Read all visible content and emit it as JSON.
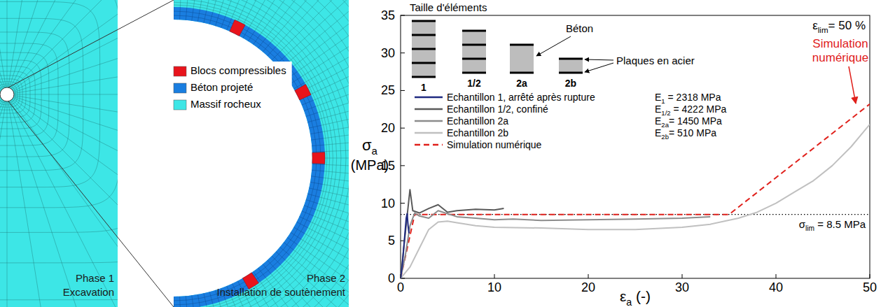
{
  "diagram": {
    "legend": [
      {
        "label": "Blocs compressibles",
        "color": "#e8141c"
      },
      {
        "label": "Béton projeté",
        "color": "#1a7ee0"
      },
      {
        "label": "Massif rocheux",
        "color": "#3de6e6"
      }
    ],
    "phases": [
      {
        "title": "Phase 1",
        "subtitle": "Excavation"
      },
      {
        "title": "Phase 2",
        "subtitle": "Installation de soutènement"
      }
    ]
  },
  "chart_data": {
    "type": "line",
    "x_label": [
      {
        "text": "ε"
      },
      {
        "sub": "a"
      },
      {
        "text": " (-)"
      }
    ],
    "y_label": [
      [
        {
          "text": "σ"
        },
        {
          "sub": "a"
        }
      ],
      [
        {
          "text": "(MPa)"
        }
      ]
    ],
    "xlim": [
      0,
      50
    ],
    "ylim": [
      0,
      35
    ],
    "xticks": [
      0,
      10,
      20,
      30,
      40,
      50
    ],
    "yticks": [
      0,
      5,
      10,
      15,
      20,
      25,
      30,
      35
    ],
    "grid": false,
    "legend": "upper left",
    "series": [
      {
        "name": "Echantillon 1, arrêté après rupture",
        "color": "#1f2a80",
        "line_style": "solid",
        "x": [
          0,
          0.2,
          0.4,
          0.6,
          0.7,
          0.8,
          0.9
        ],
        "values": [
          0,
          2,
          5,
          8,
          8.6,
          7,
          6
        ]
      },
      {
        "name": "Echantillon 1/2, confiné",
        "color": "#5a5a5a",
        "line_style": "solid",
        "x": [
          0,
          0.5,
          1.0,
          1.3,
          2,
          3,
          4,
          5,
          6,
          8,
          10,
          11
        ],
        "values": [
          0,
          6,
          11.8,
          9,
          8.7,
          9.3,
          9.8,
          8.8,
          9,
          9.2,
          9.1,
          9.3
        ]
      },
      {
        "name": "Echantillon 2a",
        "color": "#8c8c8c",
        "line_style": "solid",
        "x": [
          0,
          0.5,
          1,
          1.5,
          2,
          3,
          4,
          6,
          8,
          10,
          12,
          15,
          20,
          25,
          30,
          33
        ],
        "values": [
          0,
          3,
          7,
          8.7,
          8.3,
          8,
          9,
          8.2,
          8,
          7.8,
          7.9,
          7.7,
          7.8,
          7.9,
          8,
          8.2
        ]
      },
      {
        "name": "Echantillon 2b",
        "color": "#c0c0c0",
        "line_style": "solid",
        "x": [
          0,
          1,
          2,
          3,
          4,
          5,
          6,
          8,
          10,
          15,
          20,
          25,
          30,
          33,
          36,
          38,
          40,
          42,
          44,
          46,
          48,
          50
        ],
        "values": [
          0,
          1.5,
          4,
          6.5,
          7.5,
          7.6,
          7.4,
          7,
          6.8,
          6.7,
          6.5,
          6.5,
          6.8,
          7.2,
          8,
          8.8,
          10,
          11.5,
          13,
          15,
          17.5,
          20.5
        ]
      },
      {
        "name": "Simulation numérique",
        "color": "#e0201b",
        "line_style": "dashed",
        "x": [
          0,
          1.5,
          35,
          50
        ],
        "values": [
          0,
          8.5,
          8.5,
          23.2
        ]
      }
    ],
    "reference_line": {
      "value": 8.5,
      "label": [
        {
          "text": "σ"
        },
        {
          "sub": "lim"
        },
        {
          "text": " = 8.5 MPa"
        }
      ]
    },
    "annotations": {
      "strain_limit": [
        {
          "text": "ε"
        },
        {
          "sub": "lim"
        },
        {
          "text": "= 50 %"
        }
      ],
      "simulation_label": "Simulation numérique",
      "moduli": [
        [
          {
            "text": "E"
          },
          {
            "sub": "1"
          },
          {
            "text": " = 2318 MPa"
          }
        ],
        [
          {
            "text": "E"
          },
          {
            "sub": "1/2"
          },
          {
            "text": " = 4222 MPa"
          }
        ],
        [
          {
            "text": "E"
          },
          {
            "sub": "2a"
          },
          {
            "text": "= 1450 MPa"
          }
        ],
        [
          {
            "text": "E"
          },
          {
            "sub": "2b"
          },
          {
            "text": "= 510 MPa"
          }
        ]
      ],
      "inset": {
        "title": "Taille d'éléments",
        "specimens": [
          "1",
          "1/2",
          "2a",
          "2b"
        ],
        "concrete_label": "Béton",
        "plates_label": "Plaques en acier"
      }
    }
  }
}
